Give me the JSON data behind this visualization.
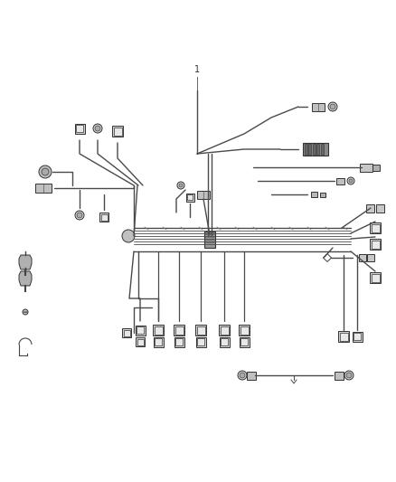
{
  "bg_color": "#ffffff",
  "wire_color": "#4a4a4a",
  "lw": 1.0,
  "lw_thick": 1.5,
  "figsize": [
    4.38,
    5.33
  ],
  "dpi": 100,
  "label_1": "1"
}
